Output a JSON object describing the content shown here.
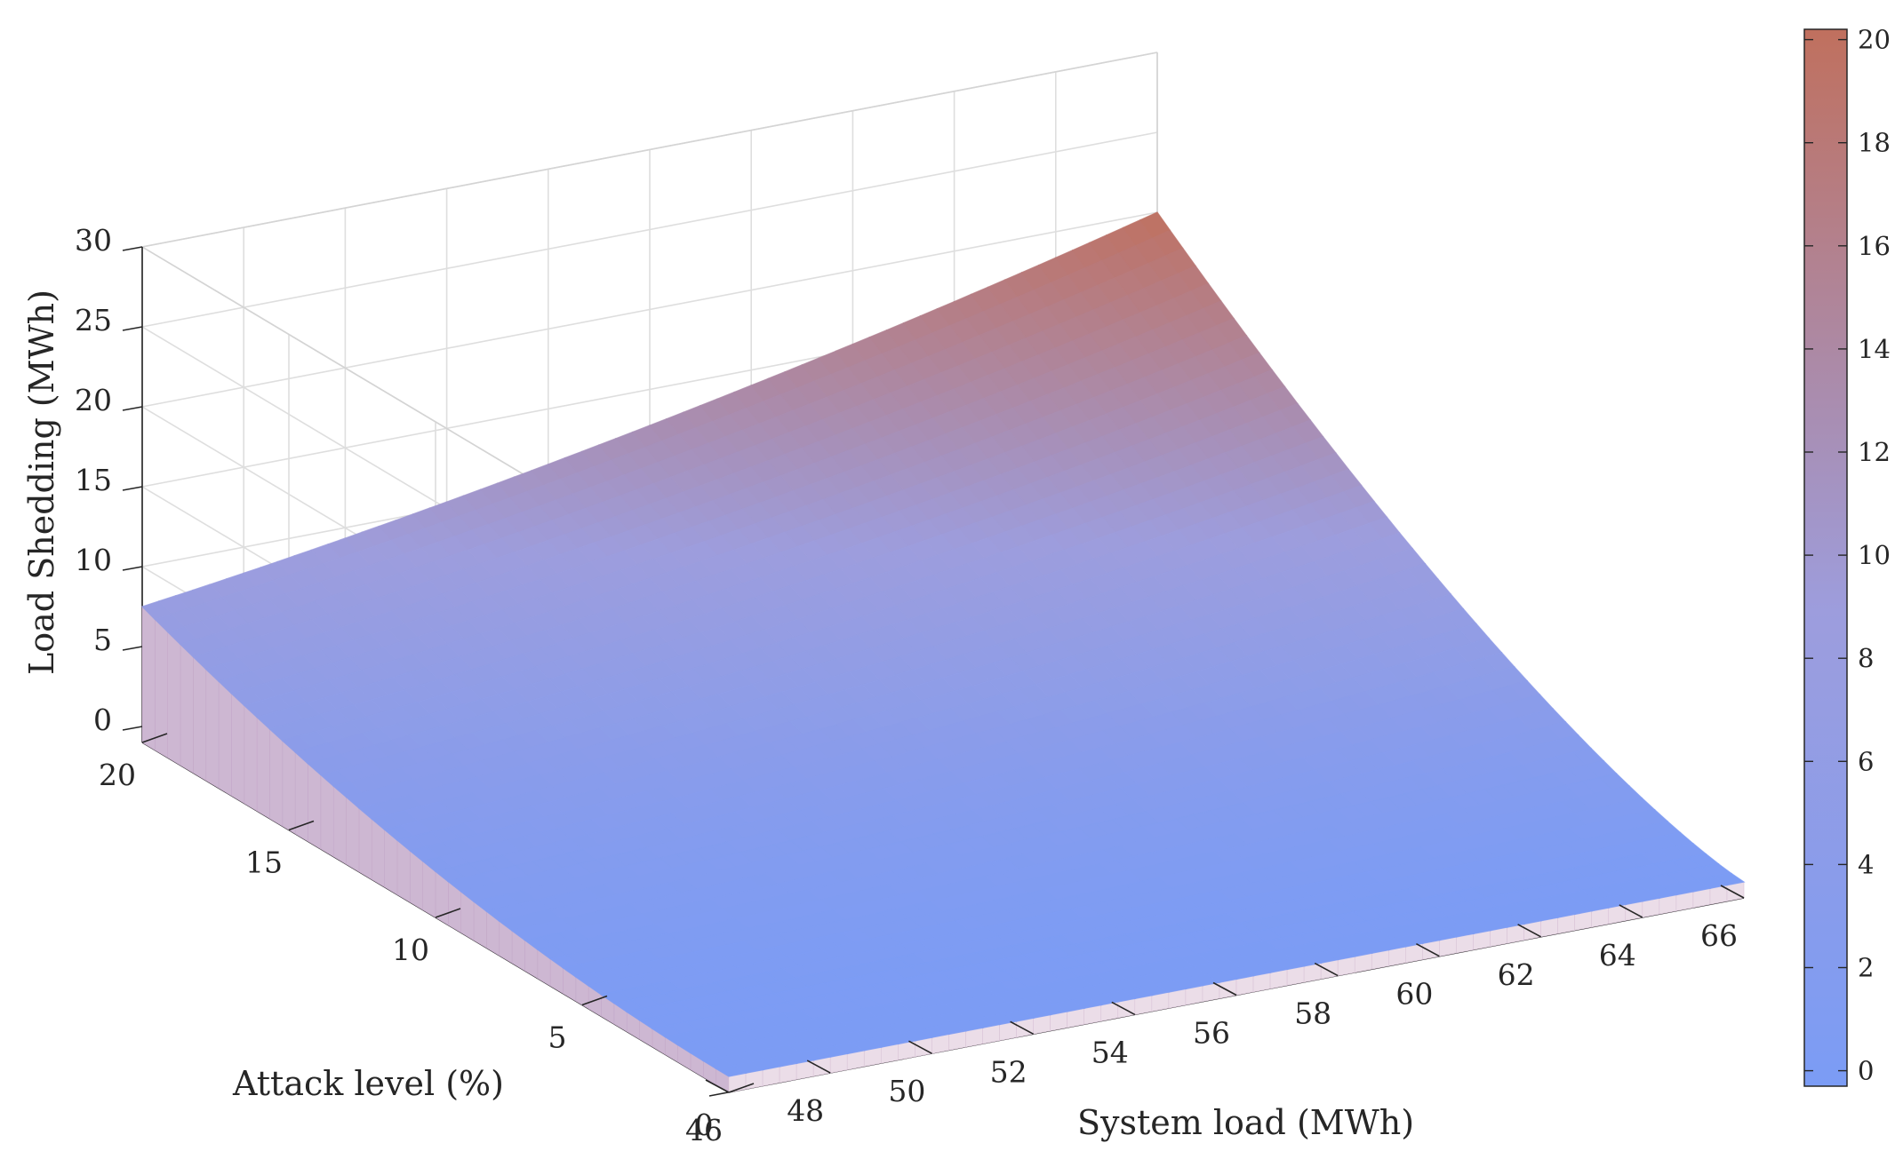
{
  "chart_data": {
    "type": "surface",
    "title": "",
    "xlabel": "System load (MWh)",
    "ylabel": "Attack level (%)",
    "zlabel": "Load Shedding (MWh)",
    "x_ticks": [
      46,
      48,
      50,
      52,
      54,
      56,
      58,
      60,
      62,
      64,
      66
    ],
    "x_tick_labels": [
      "46",
      "48",
      "50",
      "52",
      "54",
      "56",
      "58",
      "60",
      "62",
      "64",
      "66"
    ],
    "y_ticks": [
      0,
      5,
      10,
      15,
      20
    ],
    "y_tick_labels": [
      "0",
      "5",
      "10",
      "15",
      "20"
    ],
    "z_ticks": [
      0,
      5,
      10,
      15,
      20,
      25,
      30
    ],
    "z_tick_labels": [
      "0",
      "5",
      "10",
      "15",
      "20",
      "25",
      "30"
    ],
    "xlim": [
      46,
      66
    ],
    "ylim": [
      0,
      20
    ],
    "zlim": [
      -1,
      30
    ],
    "grid": true,
    "colorbar": {
      "ticks": [
        0,
        2,
        4,
        6,
        8,
        10,
        12,
        14,
        16,
        18,
        20
      ],
      "tick_labels": [
        "0",
        "2",
        "4",
        "6",
        "8",
        "10",
        "12",
        "14",
        "16",
        "18",
        "20"
      ],
      "range": [
        -0.3,
        20.2
      ],
      "color_low": "#7b9cf5",
      "color_high": "#c0705e"
    },
    "surface_samples": [
      {
        "system_load": 46,
        "attack_level": 0,
        "load_shedding": 0.0
      },
      {
        "system_load": 66,
        "attack_level": 0,
        "load_shedding": 0.0
      },
      {
        "system_load": 46,
        "attack_level": 20,
        "load_shedding": 7.5
      },
      {
        "system_load": 56,
        "attack_level": 20,
        "load_shedding": 15.0
      },
      {
        "system_load": 66,
        "attack_level": 20,
        "load_shedding": 20.0
      },
      {
        "system_load": 56,
        "attack_level": 10,
        "load_shedding": 5.0
      },
      {
        "system_load": 66,
        "attack_level": 10,
        "load_shedding": 8.0
      }
    ]
  }
}
